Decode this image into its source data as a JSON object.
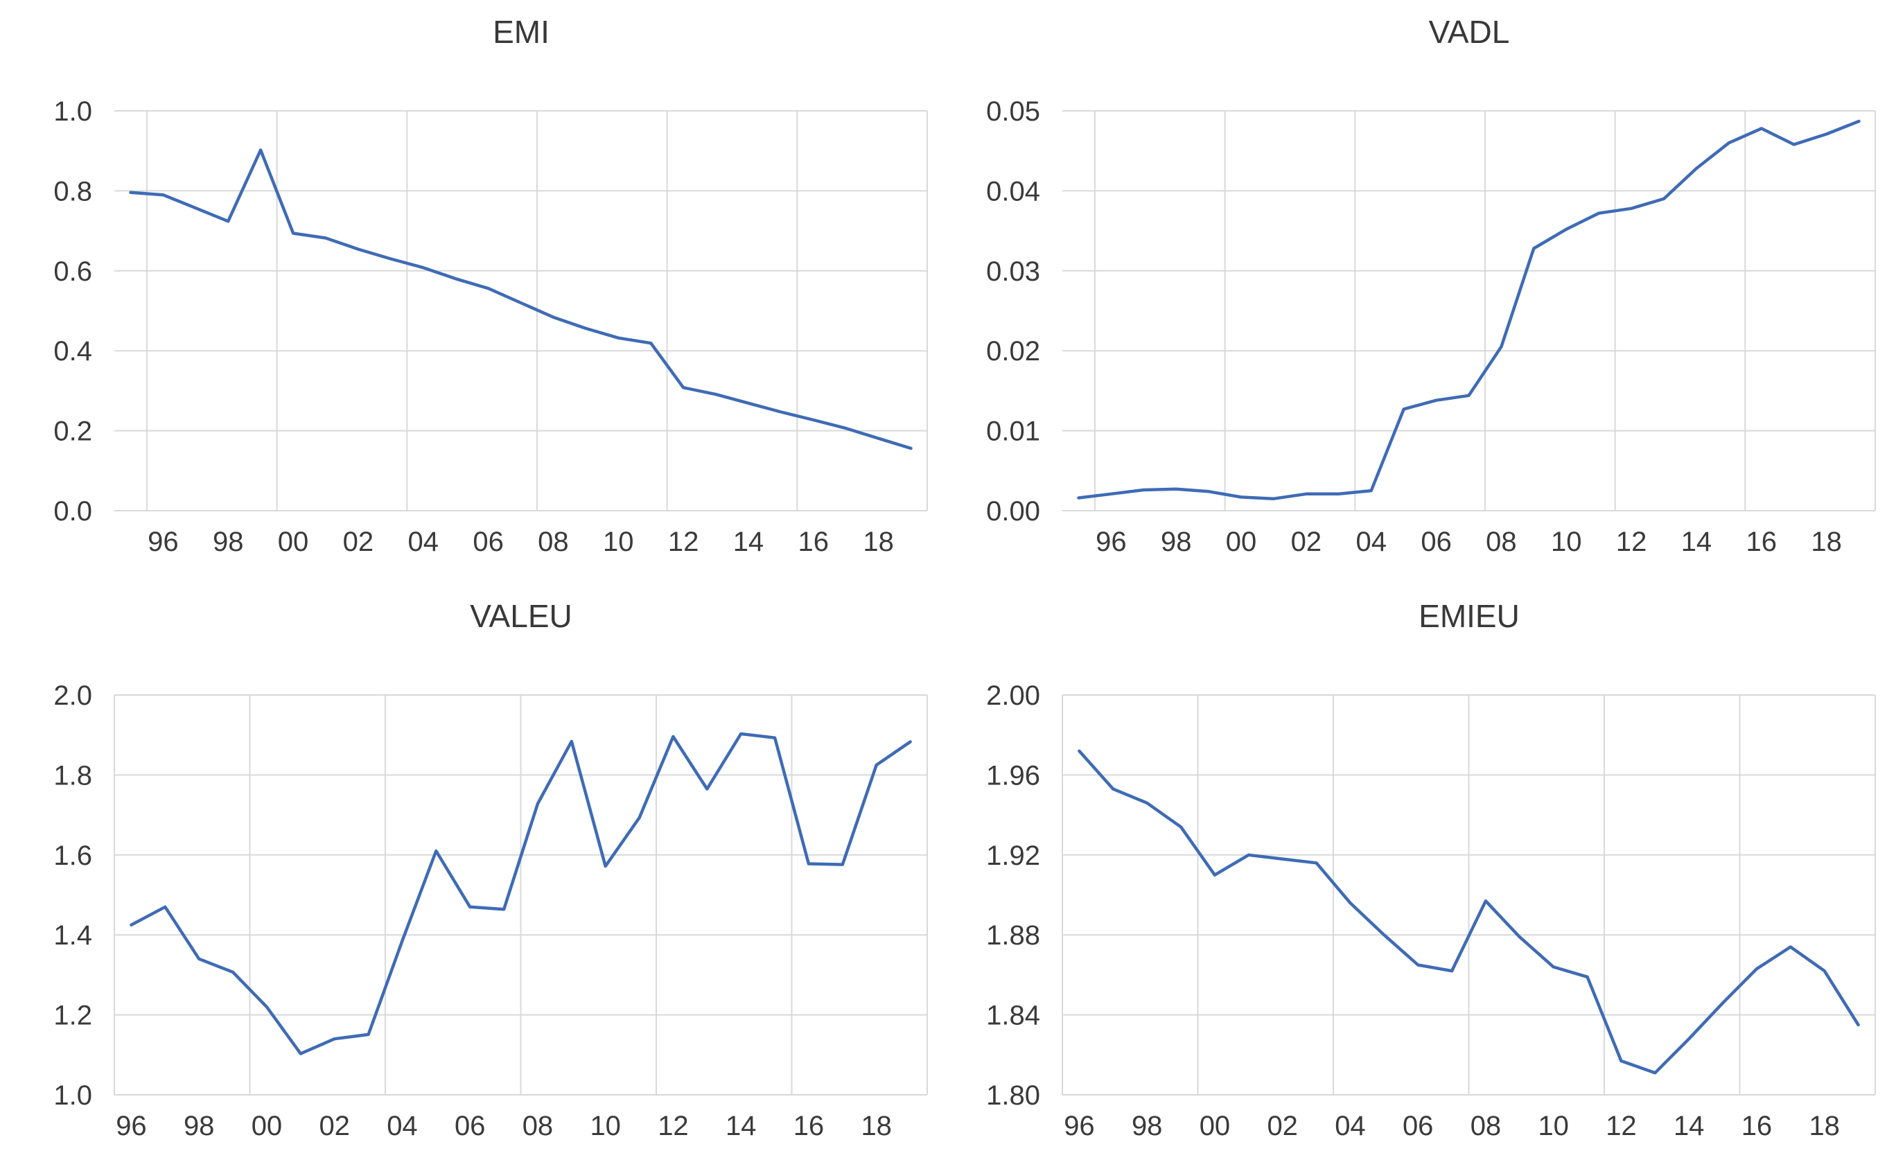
{
  "page": {
    "background_color": "#ffffff",
    "text_color": "#3a3a3a",
    "grid_color": "#d9d9d9",
    "accent_line_color": "#3f6bb5"
  },
  "chart_data": [
    {
      "type": "line",
      "title": "EMI",
      "line_color": "#3f6bb5",
      "xlabel": "",
      "ylabel": "",
      "ylim": [
        0.0,
        1.0
      ],
      "grid": true,
      "legend": "none",
      "x": [
        1995,
        1996,
        1997,
        1998,
        1999,
        2000,
        2001,
        2002,
        2003,
        2004,
        2005,
        2006,
        2007,
        2008,
        2009,
        2010,
        2011,
        2012,
        2013,
        2014,
        2015,
        2016,
        2017,
        2018,
        2019
      ],
      "values": [
        0.796,
        0.79,
        0.757,
        0.724,
        0.902,
        0.694,
        0.682,
        0.654,
        0.63,
        0.608,
        0.58,
        0.556,
        0.52,
        0.484,
        0.456,
        0.432,
        0.419,
        0.308,
        0.291,
        0.269,
        0.247,
        0.227,
        0.206,
        0.181,
        0.156
      ],
      "y_ticks": [
        1.0,
        0.8,
        0.6,
        0.4,
        0.2,
        0.0
      ],
      "y_tick_labels": [
        "1.0",
        "0.8",
        "0.6",
        "0.4",
        "0.2",
        "0.0"
      ],
      "x_tick_years": [
        1996,
        1998,
        2000,
        2002,
        2004,
        2006,
        2008,
        2010,
        2012,
        2014,
        2016,
        2018
      ],
      "x_tick_labels": [
        "96",
        "98",
        "00",
        "02",
        "04",
        "06",
        "08",
        "10",
        "12",
        "14",
        "16",
        "18"
      ],
      "grid_boundary_years": [
        1995,
        1999,
        2003,
        2007,
        2011,
        2015,
        2019
      ]
    },
    {
      "type": "line",
      "title": "VADL",
      "line_color": "#3f6bb5",
      "xlabel": "",
      "ylabel": "",
      "ylim": [
        0.0,
        0.05
      ],
      "grid": true,
      "legend": "none",
      "x": [
        1995,
        1996,
        1997,
        1998,
        1999,
        2000,
        2001,
        2002,
        2003,
        2004,
        2005,
        2006,
        2007,
        2008,
        2009,
        2010,
        2011,
        2012,
        2013,
        2014,
        2015,
        2016,
        2017,
        2018,
        2019
      ],
      "values": [
        0.0016,
        0.0021,
        0.0026,
        0.0027,
        0.0024,
        0.0017,
        0.0015,
        0.0021,
        0.0021,
        0.0025,
        0.0127,
        0.0138,
        0.0144,
        0.0205,
        0.0328,
        0.0352,
        0.0372,
        0.0378,
        0.039,
        0.0428,
        0.046,
        0.0478,
        0.0458,
        0.0471,
        0.0487
      ],
      "y_ticks": [
        0.05,
        0.04,
        0.03,
        0.02,
        0.01,
        0.0
      ],
      "y_tick_labels": [
        "0.05",
        "0.04",
        "0.03",
        "0.02",
        "0.01",
        "0.00"
      ],
      "x_tick_years": [
        1996,
        1998,
        2000,
        2002,
        2004,
        2006,
        2008,
        2010,
        2012,
        2014,
        2016,
        2018
      ],
      "x_tick_labels": [
        "96",
        "98",
        "00",
        "02",
        "04",
        "06",
        "08",
        "10",
        "12",
        "14",
        "16",
        "18"
      ],
      "grid_boundary_years": [
        1995,
        1999,
        2003,
        2007,
        2011,
        2015,
        2019
      ]
    },
    {
      "type": "line",
      "title": "VALEU",
      "line_color": "#3f6bb5",
      "xlabel": "",
      "ylabel": "",
      "ylim": [
        1.0,
        2.0
      ],
      "grid": true,
      "legend": "none",
      "x": [
        1996,
        1997,
        1998,
        1999,
        2000,
        2001,
        2002,
        2003,
        2004,
        2005,
        2006,
        2007,
        2008,
        2009,
        2010,
        2011,
        2012,
        2013,
        2014,
        2015,
        2016,
        2017,
        2018,
        2019
      ],
      "values": [
        1.425,
        1.47,
        1.34,
        1.307,
        1.22,
        1.103,
        1.14,
        1.151,
        1.385,
        1.61,
        1.47,
        1.464,
        1.728,
        1.884,
        1.572,
        1.693,
        1.896,
        1.765,
        1.903,
        1.893,
        1.578,
        1.576,
        1.825,
        1.883
      ],
      "y_ticks": [
        2.0,
        1.8,
        1.6,
        1.4,
        1.2,
        1.0
      ],
      "y_tick_labels": [
        "2.0",
        "1.8",
        "1.6",
        "1.4",
        "1.2",
        "1.0"
      ],
      "x_tick_years": [
        1996,
        1998,
        2000,
        2002,
        2004,
        2006,
        2008,
        2010,
        2012,
        2014,
        2016,
        2018
      ],
      "x_tick_labels": [
        "96",
        "98",
        "00",
        "02",
        "04",
        "06",
        "08",
        "10",
        "12",
        "14",
        "16",
        "18"
      ],
      "grid_boundary_years": [
        1995,
        1999,
        2003,
        2007,
        2011,
        2015,
        2019
      ]
    },
    {
      "type": "line",
      "title": "EMIEU",
      "line_color": "#3f6bb5",
      "xlabel": "",
      "ylabel": "",
      "ylim": [
        1.8,
        2.0
      ],
      "grid": true,
      "legend": "none",
      "x": [
        1996,
        1997,
        1998,
        1999,
        2000,
        2001,
        2002,
        2003,
        2004,
        2005,
        2006,
        2007,
        2008,
        2009,
        2010,
        2011,
        2012,
        2013,
        2014,
        2015,
        2016,
        2017,
        2018,
        2019
      ],
      "values": [
        1.972,
        1.953,
        1.946,
        1.934,
        1.91,
        1.92,
        1.918,
        1.916,
        1.896,
        1.88,
        1.865,
        1.862,
        1.897,
        1.879,
        1.864,
        1.859,
        1.817,
        1.811,
        1.828,
        1.846,
        1.863,
        1.874,
        1.862,
        1.835
      ],
      "y_ticks": [
        2.0,
        1.96,
        1.92,
        1.88,
        1.84,
        1.8
      ],
      "y_tick_labels": [
        "2.00",
        "1.96",
        "1.92",
        "1.88",
        "1.84",
        "1.80"
      ],
      "x_tick_years": [
        1996,
        1998,
        2000,
        2002,
        2004,
        2006,
        2008,
        2010,
        2012,
        2014,
        2016,
        2018
      ],
      "x_tick_labels": [
        "96",
        "98",
        "00",
        "02",
        "04",
        "06",
        "08",
        "10",
        "12",
        "14",
        "16",
        "18"
      ],
      "grid_boundary_years": [
        1995,
        1999,
        2003,
        2007,
        2011,
        2015,
        2019
      ]
    }
  ]
}
